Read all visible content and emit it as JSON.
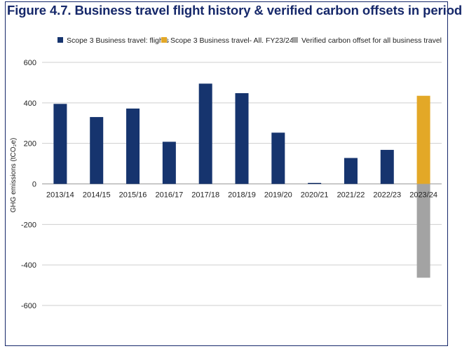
{
  "chart_data": {
    "type": "bar",
    "title": "Figure 4.7. Business travel flight history & verified carbon offsets in period",
    "xlabel": "",
    "ylabel": "GHG emissions (tCO₂e)",
    "ylim": [
      -600,
      600
    ],
    "yticks": [
      600,
      400,
      200,
      0,
      -200,
      -400,
      -600
    ],
    "ytick_labels": [
      "600",
      "400",
      "200",
      "0",
      "-200",
      "-400",
      "-600"
    ],
    "grid": true,
    "legend_position": "top",
    "categories": [
      "2013/14",
      "2014/15",
      "2015/16",
      "2016/17",
      "2017/18",
      "2018/19",
      "2019/20",
      "2020/21",
      "2021/22",
      "2022/23",
      "2023/24"
    ],
    "series": [
      {
        "name": "Scope 3 Business travel: flights",
        "color": "#16346e",
        "values": [
          395,
          330,
          372,
          208,
          495,
          448,
          253,
          5,
          128,
          168,
          null
        ]
      },
      {
        "name": "Scope 3 Business travel- All. FY23/24",
        "color": "#e3a827",
        "values": [
          null,
          null,
          null,
          null,
          null,
          null,
          null,
          null,
          null,
          null,
          435
        ]
      },
      {
        "name": "Verified carbon offset for all business travel",
        "color": "#a3a3a3",
        "values": [
          null,
          null,
          null,
          null,
          null,
          null,
          null,
          null,
          null,
          null,
          -463
        ]
      }
    ]
  }
}
